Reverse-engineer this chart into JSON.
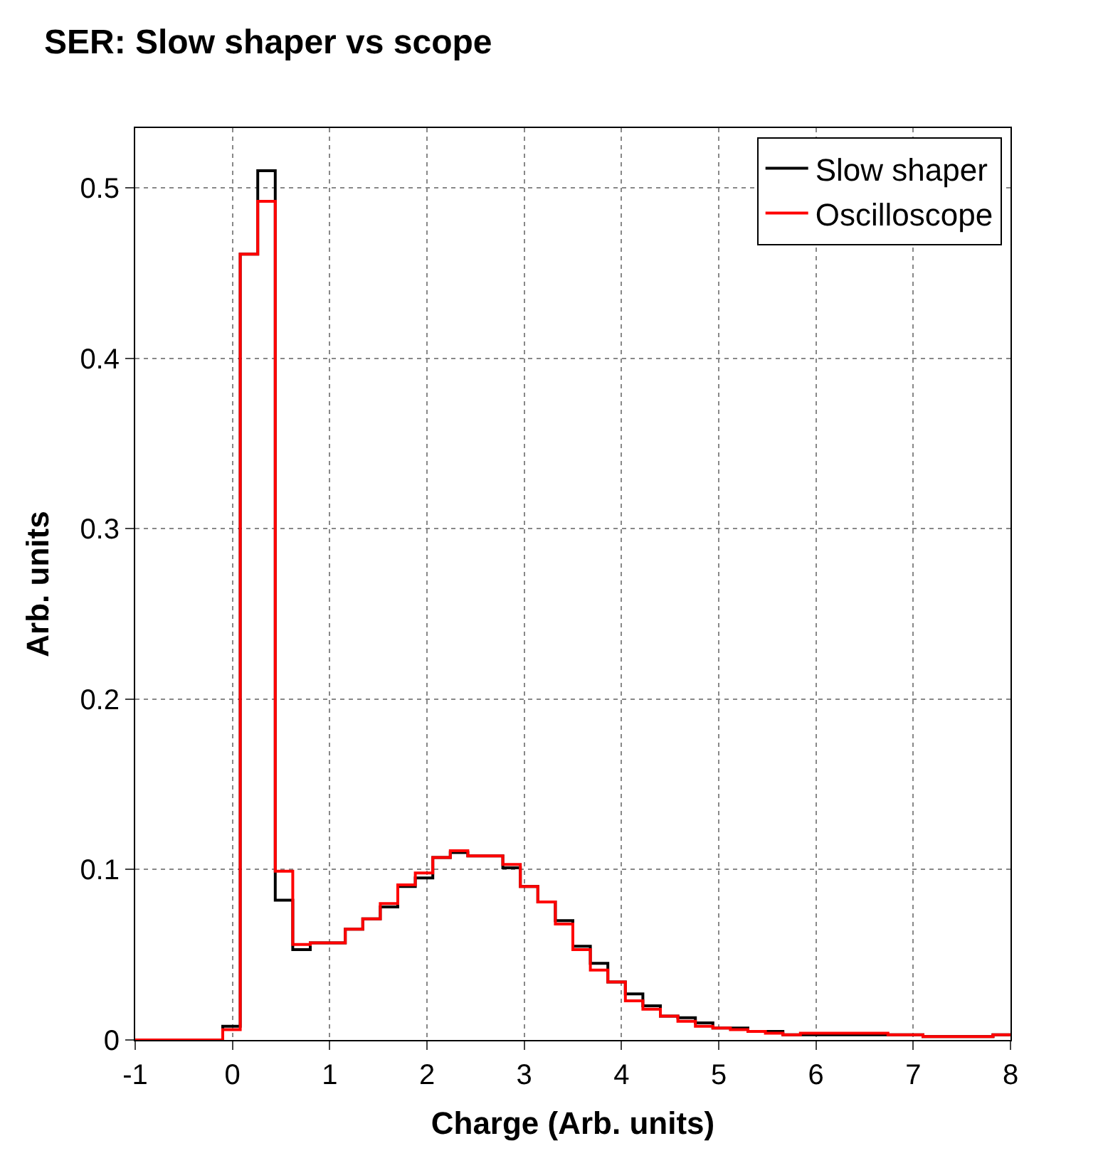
{
  "chart_data": {
    "type": "histogram",
    "title": "SER: Slow shaper vs scope",
    "xlabel": "Charge (Arb. units)",
    "ylabel": "Arb. units",
    "bins": [
      -1,
      -0.82,
      -0.64,
      -0.46,
      -0.28,
      -0.1,
      0.08,
      0.26,
      0.44,
      0.62,
      0.8,
      0.98,
      1.16,
      1.34,
      1.52,
      1.7,
      1.88,
      2.06,
      2.24,
      2.42,
      2.6,
      2.78,
      2.96,
      3.14,
      3.32,
      3.5,
      3.68,
      3.86,
      4.04,
      4.22,
      4.4,
      4.58,
      4.76,
      4.94,
      5.12,
      5.3,
      5.48,
      5.66,
      5.84,
      6.02,
      6.2,
      6.38,
      6.56,
      6.74,
      6.92,
      7.1,
      7.28,
      7.46,
      7.64,
      7.82,
      8
    ],
    "series": [
      {
        "name": "Slow shaper",
        "color": "#000000",
        "values": [
          0,
          0,
          0,
          0,
          0,
          0.008,
          0.461,
          0.51,
          0.082,
          0.053,
          0.057,
          0.057,
          0.065,
          0.071,
          0.078,
          0.09,
          0.095,
          0.107,
          0.11,
          0.108,
          0.108,
          0.101,
          0.09,
          0.081,
          0.07,
          0.055,
          0.045,
          0.034,
          0.027,
          0.02,
          0.014,
          0.013,
          0.01,
          0.007,
          0.007,
          0.005,
          0.005,
          0.003,
          0.003,
          0.003,
          0.003,
          0.003,
          0.003,
          0.003,
          0.003,
          0.002,
          0.002,
          0.002,
          0.002,
          0.003
        ]
      },
      {
        "name": "Oscilloscope",
        "color": "#ff0000",
        "values": [
          0,
          0,
          0,
          0,
          0,
          0.006,
          0.461,
          0.492,
          0.099,
          0.056,
          0.057,
          0.057,
          0.065,
          0.071,
          0.08,
          0.091,
          0.098,
          0.107,
          0.111,
          0.108,
          0.108,
          0.103,
          0.09,
          0.081,
          0.068,
          0.053,
          0.041,
          0.034,
          0.023,
          0.018,
          0.014,
          0.011,
          0.008,
          0.007,
          0.006,
          0.005,
          0.004,
          0.003,
          0.004,
          0.004,
          0.004,
          0.004,
          0.004,
          0.003,
          0.003,
          0.002,
          0.002,
          0.002,
          0.002,
          0.003
        ]
      }
    ],
    "xlim": [
      -1,
      8
    ],
    "xticks": [
      -1,
      0,
      1,
      2,
      3,
      4,
      5,
      6,
      7,
      8
    ],
    "ylim": [
      0,
      0.535
    ],
    "yticks": [
      0,
      0.1,
      0.2,
      0.3,
      0.4,
      0.5
    ],
    "grid": true,
    "legend": "top right",
    "line_style": "solid"
  }
}
